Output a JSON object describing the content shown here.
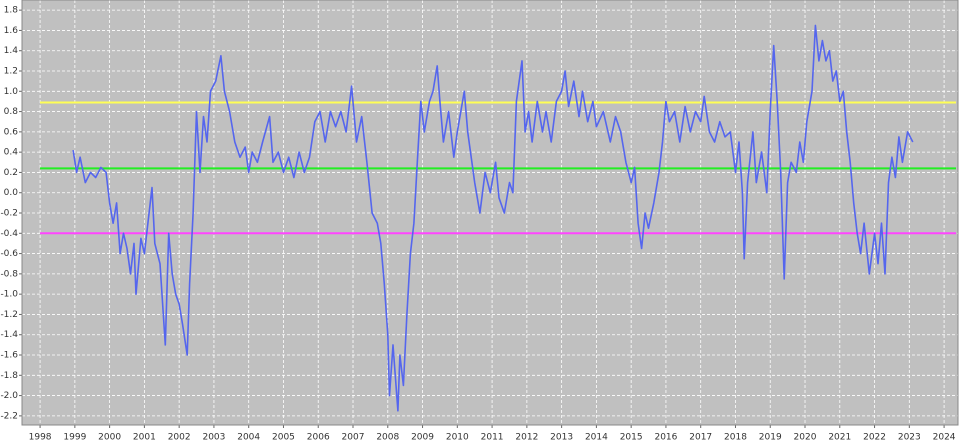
{
  "chart_data": {
    "type": "line",
    "xlim": [
      1997.48,
      2024.4
    ],
    "ylim": [
      -2.29,
      1.9
    ],
    "xticks": [
      1998,
      1999,
      2000,
      2001,
      2002,
      2003,
      2004,
      2005,
      2006,
      2007,
      2008,
      2009,
      2010,
      2011,
      2012,
      2013,
      2014,
      2015,
      2016,
      2017,
      2018,
      2019,
      2020,
      2021,
      2022,
      2023,
      2024
    ],
    "yticks": [
      {
        "value": -2.2,
        "label": "-2.2"
      },
      {
        "value": -2.0,
        "label": "-2.0"
      },
      -1.8,
      -1.6,
      -1.4,
      -1.2,
      {
        "value": -1.0,
        "label": "-1.0"
      },
      -0.8,
      -0.6,
      -0.4,
      -0.2,
      {
        "value": 0.0,
        "label": "0.0"
      },
      0.2,
      0.4,
      0.6,
      0.8,
      {
        "value": 1.0,
        "label": "1.0"
      },
      1.2,
      1.4,
      1.6,
      1.8
    ],
    "grid": true,
    "background": "#c0c0c0",
    "reference_lines": [
      {
        "value": 0.89,
        "color": "#ffff55"
      },
      {
        "value": 0.24,
        "color": "#22ee22"
      },
      {
        "value": -0.4,
        "color": "#ff44ff"
      }
    ],
    "series": [
      {
        "color": "#5566ee",
        "x": [
          1998.95,
          1999.05,
          1999.15,
          1999.3,
          1999.45,
          1999.6,
          1999.75,
          1999.9,
          2000.0,
          2000.1,
          2000.2,
          2000.3,
          2000.4,
          2000.5,
          2000.6,
          2000.7,
          2000.76,
          2000.9,
          2001.0,
          2001.1,
          2001.22,
          2001.3,
          2001.45,
          2001.6,
          2001.7,
          2001.8,
          2001.9,
          2002.0,
          2002.1,
          2002.23,
          2002.3,
          2002.4,
          2002.5,
          2002.6,
          2002.7,
          2002.8,
          2002.9,
          2003.05,
          2003.2,
          2003.3,
          2003.45,
          2003.6,
          2003.75,
          2003.9,
          2004.0,
          2004.1,
          2004.25,
          2004.4,
          2004.6,
          2004.7,
          2004.85,
          2005.0,
          2005.15,
          2005.3,
          2005.45,
          2005.6,
          2005.75,
          2005.9,
          2006.05,
          2006.2,
          2006.35,
          2006.5,
          2006.65,
          2006.8,
          2006.96,
          2007.1,
          2007.25,
          2007.4,
          2007.55,
          2007.7,
          2007.8,
          2007.9,
          2008.0,
          2008.05,
          2008.15,
          2008.29,
          2008.35,
          2008.45,
          2008.55,
          2008.65,
          2008.75,
          2008.85,
          2008.95,
          2009.05,
          2009.2,
          2009.3,
          2009.42,
          2009.5,
          2009.6,
          2009.75,
          2009.9,
          2010.0,
          2010.2,
          2010.3,
          2010.5,
          2010.65,
          2010.8,
          2010.95,
          2011.1,
          2011.2,
          2011.35,
          2011.5,
          2011.6,
          2011.7,
          2011.86,
          2011.95,
          2012.05,
          2012.15,
          2012.3,
          2012.45,
          2012.55,
          2012.7,
          2012.85,
          2013.0,
          2013.1,
          2013.2,
          2013.35,
          2013.5,
          2013.6,
          2013.75,
          2013.9,
          2014.0,
          2014.2,
          2014.4,
          2014.55,
          2014.7,
          2014.85,
          2015.0,
          2015.1,
          2015.2,
          2015.3,
          2015.4,
          2015.5,
          2015.65,
          2015.8,
          2015.9,
          2016.0,
          2016.1,
          2016.25,
          2016.4,
          2016.55,
          2016.7,
          2016.85,
          2017.0,
          2017.1,
          2017.25,
          2017.4,
          2017.55,
          2017.7,
          2017.85,
          2018.0,
          2018.1,
          2018.2,
          2018.25,
          2018.35,
          2018.5,
          2018.6,
          2018.75,
          2018.9,
          2019.0,
          2019.1,
          2019.2,
          2019.3,
          2019.4,
          2019.5,
          2019.6,
          2019.75,
          2019.85,
          2019.95,
          2020.05,
          2020.2,
          2020.3,
          2020.4,
          2020.5,
          2020.6,
          2020.7,
          2020.8,
          2020.9,
          2021.0,
          2021.1,
          2021.2,
          2021.3,
          2021.4,
          2021.5,
          2021.6,
          2021.7,
          2021.85,
          2022.0,
          2022.1,
          2022.2,
          2022.3,
          2022.4,
          2022.5,
          2022.6,
          2022.7,
          2022.8,
          2022.95,
          2023.1
        ],
        "values": [
          0.42,
          0.2,
          0.35,
          0.1,
          0.2,
          0.15,
          0.25,
          0.2,
          -0.1,
          -0.3,
          -0.1,
          -0.6,
          -0.4,
          -0.55,
          -0.8,
          -0.5,
          -1.0,
          -0.45,
          -0.6,
          -0.3,
          0.05,
          -0.5,
          -0.7,
          -1.5,
          -0.4,
          -0.8,
          -1.0,
          -1.1,
          -1.3,
          -1.6,
          -0.9,
          -0.2,
          0.8,
          0.2,
          0.75,
          0.5,
          1.0,
          1.1,
          1.35,
          1.0,
          0.8,
          0.5,
          0.35,
          0.45,
          0.2,
          0.4,
          0.3,
          0.5,
          0.75,
          0.3,
          0.4,
          0.2,
          0.35,
          0.15,
          0.4,
          0.2,
          0.35,
          0.7,
          0.8,
          0.5,
          0.8,
          0.65,
          0.8,
          0.6,
          1.05,
          0.5,
          0.75,
          0.3,
          -0.2,
          -0.3,
          -0.5,
          -0.9,
          -1.4,
          -2.0,
          -1.5,
          -2.15,
          -1.6,
          -1.9,
          -1.2,
          -0.6,
          -0.3,
          0.3,
          0.9,
          0.6,
          0.9,
          1.0,
          1.25,
          0.9,
          0.5,
          0.8,
          0.35,
          0.6,
          1.0,
          0.6,
          0.1,
          -0.2,
          0.2,
          0.0,
          0.3,
          -0.05,
          -0.2,
          0.1,
          0.0,
          0.9,
          1.3,
          0.6,
          0.8,
          0.5,
          0.9,
          0.6,
          0.8,
          0.5,
          0.9,
          1.0,
          1.2,
          0.85,
          1.1,
          0.75,
          1.0,
          0.7,
          0.9,
          0.65,
          0.8,
          0.5,
          0.75,
          0.6,
          0.3,
          0.1,
          0.25,
          -0.3,
          -0.55,
          -0.2,
          -0.35,
          -0.1,
          0.2,
          0.5,
          0.9,
          0.7,
          0.8,
          0.5,
          0.85,
          0.6,
          0.8,
          0.7,
          0.95,
          0.6,
          0.5,
          0.7,
          0.55,
          0.6,
          0.2,
          0.5,
          0.0,
          -0.65,
          0.1,
          0.6,
          0.1,
          0.4,
          0.0,
          0.8,
          1.45,
          0.9,
          0.2,
          -0.85,
          0.1,
          0.3,
          0.2,
          0.5,
          0.3,
          0.7,
          1.0,
          1.65,
          1.3,
          1.5,
          1.3,
          1.4,
          1.1,
          1.2,
          0.9,
          1.0,
          0.6,
          0.3,
          -0.1,
          -0.4,
          -0.6,
          -0.3,
          -0.8,
          -0.4,
          -0.7,
          -0.3,
          -0.8,
          0.1,
          0.35,
          0.15,
          0.55,
          0.3,
          0.6,
          0.5
        ]
      }
    ]
  }
}
